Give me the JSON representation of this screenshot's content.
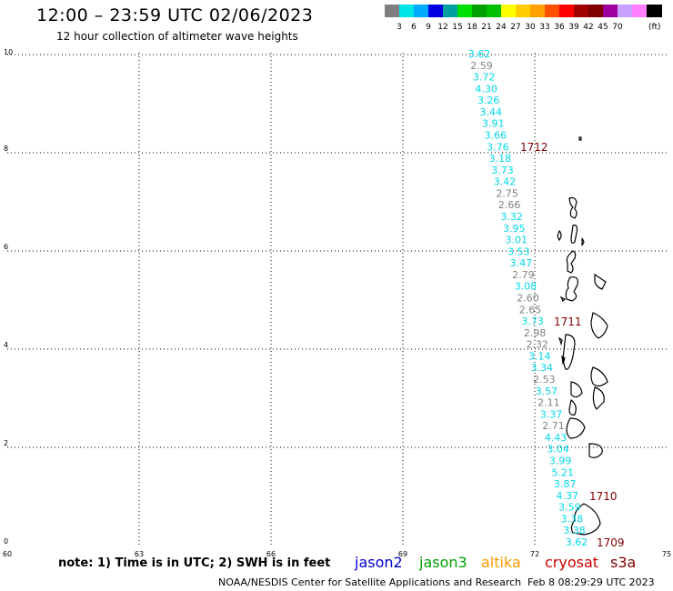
{
  "title": "12:00 – 23:59 UTC 02/06/2023",
  "subtitle": "12 hour collection of altimeter wave heights",
  "colorbar": {
    "colors": [
      "#7f7f7f",
      "#00e5e5",
      "#00aaff",
      "#0000e0",
      "#00a0a0",
      "#00e000",
      "#00a000",
      "#00c000",
      "#ffff00",
      "#ffcc00",
      "#ffa000",
      "#ff5000",
      "#ff0000",
      "#a00000",
      "#800000",
      "#a000a0",
      "#c8a0ff",
      "#ff80ff",
      "#000000"
    ],
    "labels": [
      "3",
      "6",
      "9",
      "12",
      "15",
      "18",
      "21",
      "24",
      "27",
      "30",
      "33",
      "36",
      "39",
      "42",
      "45",
      "70"
    ],
    "unit": "(ft)"
  },
  "axes": {
    "x_ticks": [
      "60",
      "63",
      "66",
      "69",
      "72",
      "75"
    ],
    "y_ticks": [
      "0",
      "2",
      "4",
      "6",
      "8",
      "10"
    ]
  },
  "wave_heights": [
    {
      "v": "3.62",
      "c": "#00d8e8"
    },
    {
      "v": "2.59",
      "c": "#808080"
    },
    {
      "v": "3.72",
      "c": "#00d8e8"
    },
    {
      "v": "4.30",
      "c": "#00d8e8"
    },
    {
      "v": "3.26",
      "c": "#00d8e8"
    },
    {
      "v": "3.44",
      "c": "#00d8e8"
    },
    {
      "v": "3.91",
      "c": "#00d8e8"
    },
    {
      "v": "3.66",
      "c": "#00d8e8"
    },
    {
      "v": "3.76",
      "c": "#00d8e8"
    },
    {
      "v": "3.18",
      "c": "#00d8e8"
    },
    {
      "v": "3.73",
      "c": "#00d8e8"
    },
    {
      "v": "3.42",
      "c": "#00d8e8"
    },
    {
      "v": "2.75",
      "c": "#808080"
    },
    {
      "v": "2.66",
      "c": "#808080"
    },
    {
      "v": "3.32",
      "c": "#00d8e8"
    },
    {
      "v": "3.95",
      "c": "#00d8e8"
    },
    {
      "v": "3.01",
      "c": "#00d8e8"
    },
    {
      "v": "3.53",
      "c": "#00d8e8"
    },
    {
      "v": "3.47",
      "c": "#00d8e8"
    },
    {
      "v": "2.79",
      "c": "#808080"
    },
    {
      "v": "3.08",
      "c": "#00d8e8"
    },
    {
      "v": "2.60",
      "c": "#808080"
    },
    {
      "v": "2.65",
      "c": "#808080"
    },
    {
      "v": "3.73",
      "c": "#00d8e8"
    },
    {
      "v": "2.98",
      "c": "#808080"
    },
    {
      "v": "2.32",
      "c": "#808080"
    },
    {
      "v": "3.14",
      "c": "#00d8e8"
    },
    {
      "v": "3.34",
      "c": "#00d8e8"
    },
    {
      "v": "2.53",
      "c": "#808080"
    },
    {
      "v": "3.57",
      "c": "#00d8e8"
    },
    {
      "v": "2.11",
      "c": "#808080"
    },
    {
      "v": "3.37",
      "c": "#00d8e8"
    },
    {
      "v": "2.71",
      "c": "#808080"
    },
    {
      "v": "4.43",
      "c": "#00d8e8"
    },
    {
      "v": "3.04",
      "c": "#00d8e8"
    },
    {
      "v": "3.99",
      "c": "#00d8e8"
    },
    {
      "v": "5.21",
      "c": "#00d8e8"
    },
    {
      "v": "3.87",
      "c": "#00d8e8"
    },
    {
      "v": "4.37",
      "c": "#00d8e8"
    },
    {
      "v": "3.59",
      "c": "#00d8e8"
    },
    {
      "v": "3.38",
      "c": "#00d8e8"
    },
    {
      "v": "3.38",
      "c": "#00d8e8"
    },
    {
      "v": "3.62",
      "c": "#00d8e8"
    }
  ],
  "time_labels": [
    "1712",
    "1711",
    "1710",
    "1709"
  ],
  "satellites": [
    {
      "name": "jason2",
      "color": "#0000d0"
    },
    {
      "name": "jason3",
      "color": "#00a000"
    },
    {
      "name": "altika",
      "color": "#ff9900"
    },
    {
      "name": "cryosat",
      "color": "#cc0000"
    },
    {
      "name": "s3a",
      "color": "#800000"
    }
  ],
  "note": "note:  1) Time is in UTC;  2) SWH is in feet",
  "credit": "NOAA/NESDIS Center for Satellite Applications and Research",
  "timestamp": "Feb  8 08:29:29 UTC 2023"
}
